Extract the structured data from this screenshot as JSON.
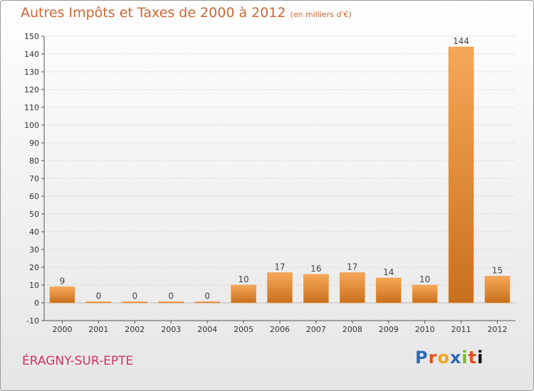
{
  "title": "Autres Impôts et Taxes de 2000 à 2012",
  "unit_note": "(en milliers d'€)",
  "commune": "ÉRAGNY-SUR-EPTE",
  "logo": {
    "letters": [
      "P",
      "r",
      "o",
      "x",
      "i",
      "t",
      "i"
    ]
  },
  "colors": {
    "bar_light": "#f6a858",
    "bar_dark": "#c8701e",
    "title": "#cc6633",
    "commune": "#cc3366"
  },
  "chart_data": {
    "type": "bar",
    "title": "Autres Impôts et Taxes de 2000 à 2012",
    "subtitle": "(en milliers d'€)",
    "xlabel": "",
    "ylabel": "",
    "categories": [
      "2000",
      "2001",
      "2002",
      "2003",
      "2004",
      "2005",
      "2006",
      "2007",
      "2008",
      "2009",
      "2010",
      "2011",
      "2012"
    ],
    "values": [
      9,
      0,
      0,
      0,
      0,
      10,
      17,
      16,
      17,
      14,
      10,
      144,
      15
    ],
    "data_labels": [
      "9",
      "0",
      "0",
      "0",
      "0",
      "10",
      "17",
      "16",
      "17",
      "14",
      "10",
      "144",
      "15"
    ],
    "ylim": [
      -10,
      150
    ],
    "yticks": [
      -10,
      0,
      10,
      20,
      30,
      40,
      50,
      60,
      70,
      80,
      90,
      100,
      110,
      120,
      130,
      140,
      150
    ],
    "grid": true,
    "legend": "none"
  }
}
